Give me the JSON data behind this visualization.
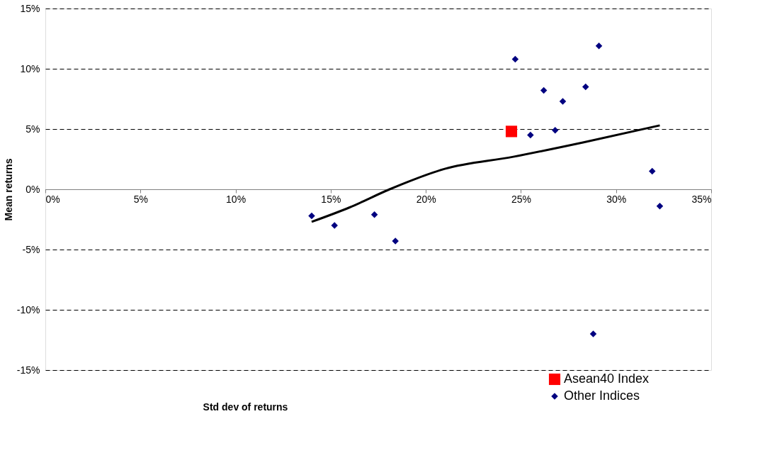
{
  "chart_data": {
    "type": "scatter",
    "xlabel": "Std dev of returns",
    "ylabel": "Mean returns",
    "xlim": [
      0,
      35
    ],
    "ylim": [
      -15,
      15
    ],
    "xticks": [
      {
        "value": 0,
        "label": "0%"
      },
      {
        "value": 5,
        "label": "5%"
      },
      {
        "value": 10,
        "label": "10%"
      },
      {
        "value": 15,
        "label": "15%"
      },
      {
        "value": 20,
        "label": "20%"
      },
      {
        "value": 25,
        "label": "25%"
      },
      {
        "value": 30,
        "label": "30%"
      },
      {
        "value": 35,
        "label": "35%"
      }
    ],
    "yticks": [
      {
        "value": -15,
        "label": "-15%"
      },
      {
        "value": -10,
        "label": "-10%"
      },
      {
        "value": -5,
        "label": "-5%"
      },
      {
        "value": 0,
        "label": "0%"
      },
      {
        "value": 5,
        "label": "5%"
      },
      {
        "value": 10,
        "label": "10%"
      },
      {
        "value": 15,
        "label": "15%"
      }
    ],
    "grid": "y",
    "legend": "bottom right",
    "series": [
      {
        "name": "Asean40 Index",
        "color": "#ff0000",
        "marker": "square",
        "x": [
          24.5
        ],
        "values": [
          4.8
        ]
      },
      {
        "name": "Other Indices",
        "color": "#000080",
        "marker": "diamond",
        "x": [
          14.0,
          15.2,
          17.3,
          18.4,
          24.7,
          25.5,
          26.2,
          26.8,
          27.2,
          28.4,
          28.8,
          29.1,
          31.9,
          32.3
        ],
        "values": [
          -2.2,
          -3.0,
          -2.1,
          -4.3,
          10.8,
          4.5,
          8.2,
          4.9,
          7.3,
          8.5,
          -12.0,
          11.9,
          1.5,
          -1.4
        ]
      },
      {
        "type": "line",
        "color": "#000000",
        "x": [
          14.0,
          16.0,
          18.1,
          21.0,
          24.6,
          28.3,
          32.3
        ],
        "values": [
          -2.7,
          -1.5,
          0.0,
          1.7,
          2.7,
          3.9,
          5.3
        ]
      }
    ]
  }
}
